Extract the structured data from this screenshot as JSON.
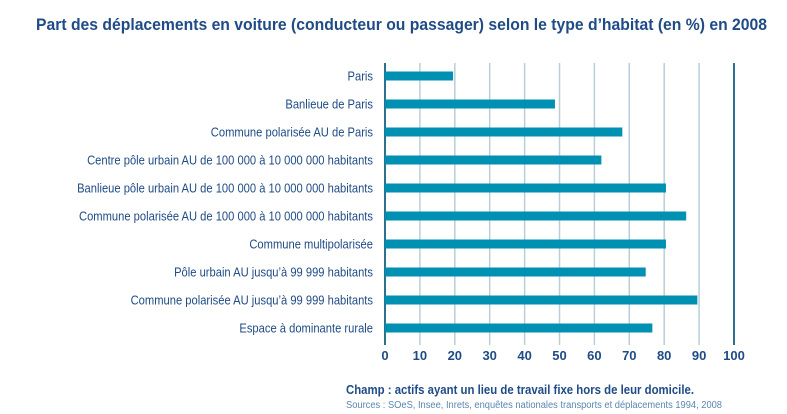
{
  "colors": {
    "title": "#1f4b86",
    "bar": "#0090b2",
    "grid": "#b9ced8",
    "axis": "#2a7290",
    "label": "#1f4b86",
    "source": "#5a86b0"
  },
  "chart_data": {
    "type": "bar",
    "orientation": "horizontal",
    "title": "Part des déplacements en voiture (conducteur ou passager) selon le type d’habitat (en %) en 2008",
    "xlabel": "",
    "ylabel": "",
    "xlim": [
      0,
      100
    ],
    "xticks": [
      "0",
      "10",
      "20",
      "30",
      "40",
      "50",
      "60",
      "70",
      "80",
      "90",
      "100"
    ],
    "grid": true,
    "categories": [
      "Paris",
      "Banlieue de Paris",
      "Commune polarisée AU de Paris",
      "Centre pôle urbain AU de 100 000 à 10 000 000 habitants",
      "Banlieue pôle urbain AU de 100 000 à 10 000 000 habitants",
      "Commune polarisée AU de 100 000 à 10 000 000 habitants",
      "Commune multipolarisée",
      "Pôle urbain AU jusqu’à 99 999 habitants",
      "Commune polarisée AU jusqu’à 99 999 habitants",
      "Espace à dominante rurale"
    ],
    "values": [
      19.5,
      48.7,
      68,
      62,
      80.5,
      86.3,
      80.5,
      74.7,
      89.5,
      76.6
    ]
  },
  "footer": {
    "note": "Champ : actifs ayant un lieu de travail fixe hors de leur domicile.",
    "source": "Sources : SOeS, Insee, Inrets, enquêtes nationales transports et déplacements 1994, 2008"
  }
}
